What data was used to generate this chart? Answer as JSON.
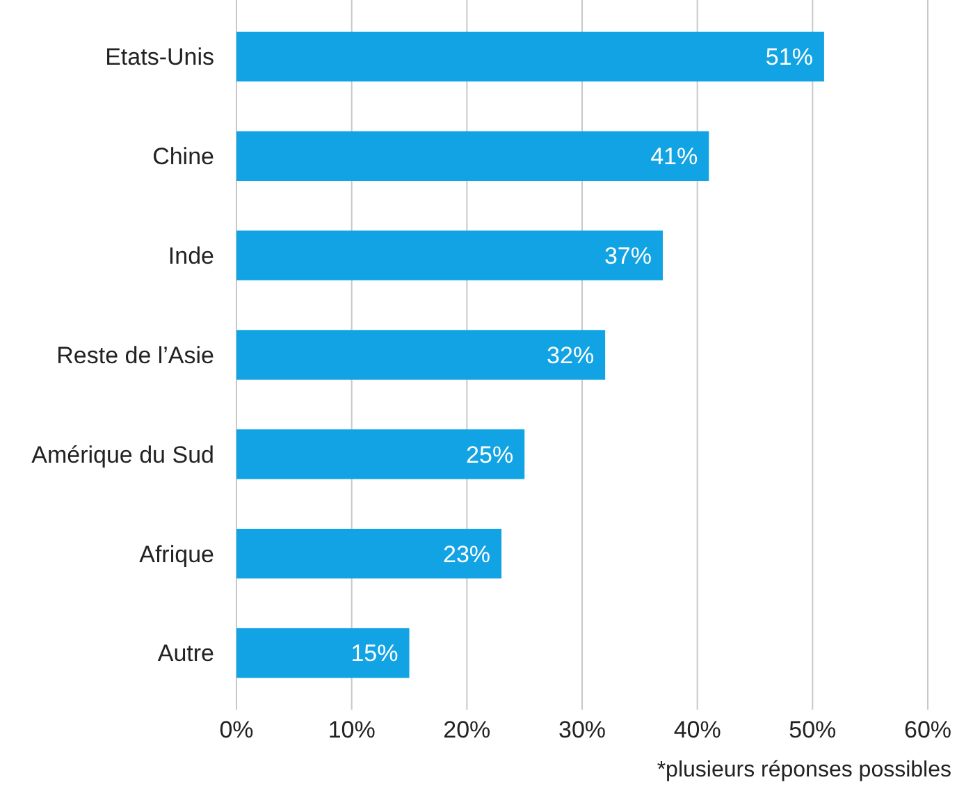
{
  "chart_data": {
    "type": "bar",
    "orientation": "horizontal",
    "categories": [
      "Etats-Unis",
      "Chine",
      "Inde",
      "Reste de l’Asie",
      "Amérique du Sud",
      "Afrique",
      "Autre"
    ],
    "values": [
      51,
      41,
      37,
      32,
      25,
      23,
      15
    ],
    "color": "#11a3e3",
    "value_labels": [
      "51%",
      "41%",
      "37%",
      "32%",
      "25%",
      "23%",
      "15%"
    ],
    "xlim": [
      0,
      60
    ],
    "xticks": [
      {
        "value": 0,
        "label": "0%"
      },
      {
        "value": 10,
        "label": "10%"
      },
      {
        "value": 20,
        "label": "20%"
      },
      {
        "value": 30,
        "label": "30%"
      },
      {
        "value": 40,
        "label": "40%"
      },
      {
        "value": 50,
        "label": "50%"
      },
      {
        "value": 60,
        "label": "60%"
      }
    ],
    "grid": "x",
    "annotations": [
      "*plusieurs réponses possibles"
    ]
  }
}
